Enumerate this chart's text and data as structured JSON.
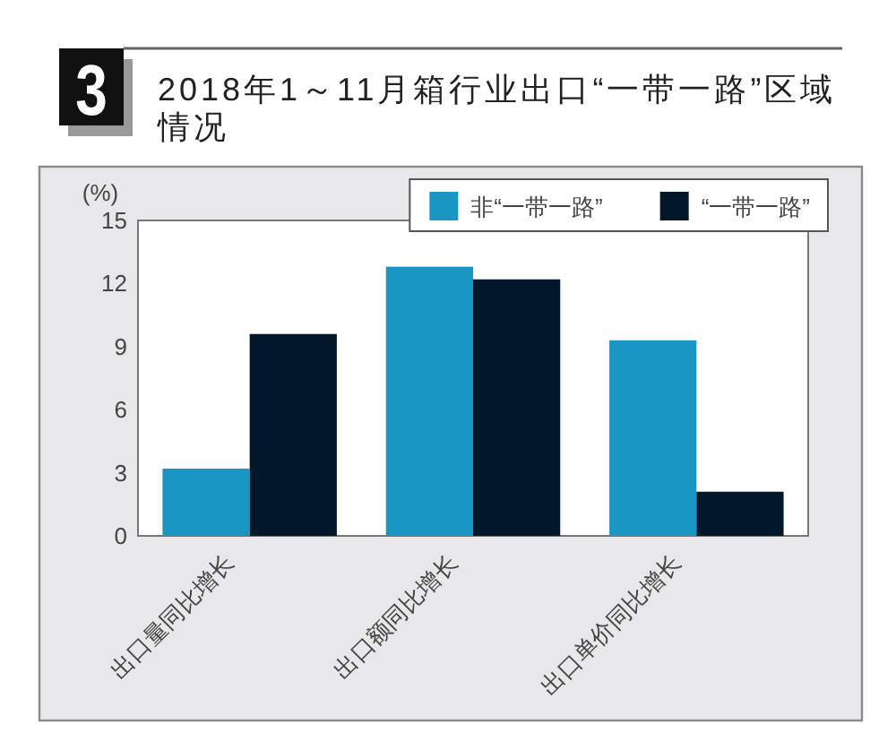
{
  "chart_data": {
    "type": "bar",
    "title": "2018年1～11月箱行业出口“一带一路”区域情况",
    "annotations": [
      "3"
    ],
    "ylabel": "(%)",
    "categories": [
      "出口量同比增长",
      "出口额同比增长",
      "出口单价同比增长"
    ],
    "series": [
      {
        "name": "非“一带一路”",
        "color": "#1a96c4",
        "values": [
          3.2,
          12.8,
          9.3
        ]
      },
      {
        "name": "“一带一路”",
        "color": "#03172a",
        "values": [
          9.6,
          12.2,
          2.1
        ]
      }
    ],
    "ylim": [
      0,
      15
    ],
    "yticks": [
      0,
      3,
      6,
      9,
      12,
      15
    ],
    "grid": false,
    "legend": "top right"
  }
}
